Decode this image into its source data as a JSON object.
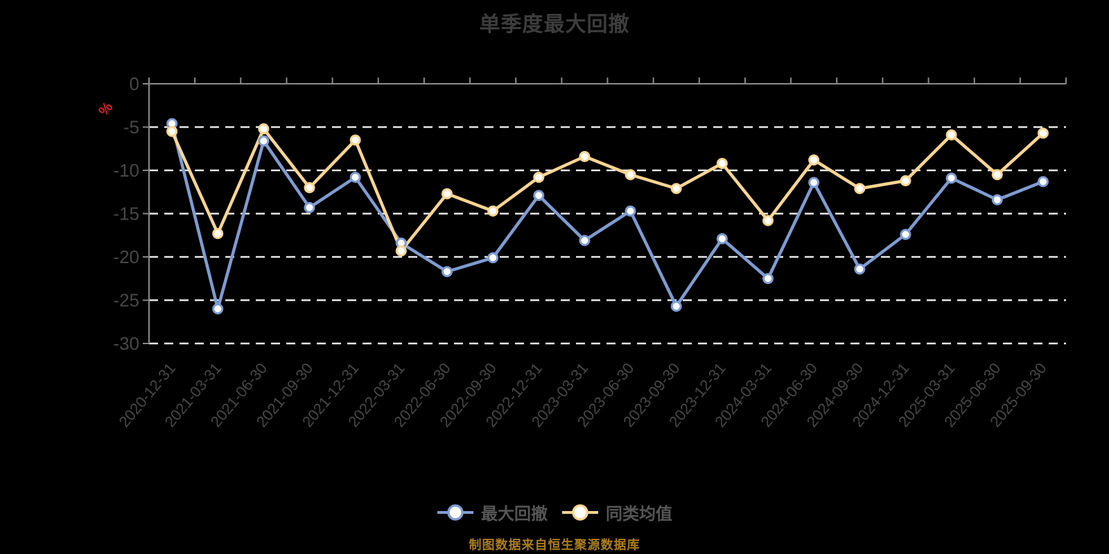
{
  "title": "单季度最大回撤",
  "source_note": "制图数据来自恒生聚源数据库",
  "unit_label": "%",
  "colors": {
    "background": "#000000",
    "title": "#3d3d3d",
    "axis_line": "#8a8a8a",
    "axis_label": "#474747",
    "grid_line": "#e8e8e8",
    "unit_label": "#e01e1e",
    "legend_label": "#555555",
    "source_note": "#ab7e1a",
    "marker_fill": "#ffffff"
  },
  "chart_data": {
    "type": "line",
    "title": "单季度最大回撤",
    "xlabel": "",
    "ylabel": "%",
    "ylim": [
      -30,
      0
    ],
    "y_ticks": [
      0,
      -5,
      -10,
      -15,
      -20,
      -25,
      -30
    ],
    "grid": "horizontal-dashed",
    "legend_position": "bottom",
    "categories": [
      "2020-12-31",
      "2021-03-31",
      "2021-06-30",
      "2021-09-30",
      "2021-12-31",
      "2022-03-31",
      "2022-06-30",
      "2022-09-30",
      "2022-12-31",
      "2023-03-31",
      "2023-06-30",
      "2023-09-30",
      "2023-12-31",
      "2024-03-31",
      "2024-06-30",
      "2024-09-30",
      "2024-12-31",
      "2025-03-31",
      "2025-06-30",
      "2025-09-30"
    ],
    "series": [
      {
        "name": "最大回撤",
        "color": "#7e9cd2",
        "values": [
          -4.6,
          -26,
          -6.6,
          -14.3,
          -10.8,
          -18.4,
          -21.7,
          -20.1,
          -12.9,
          -18.1,
          -14.7,
          -25.7,
          -17.9,
          -22.5,
          -11.4,
          -21.4,
          -17.4,
          -10.9,
          -13.4,
          -11.3
        ]
      },
      {
        "name": "同类均值",
        "color": "#fad592",
        "values": [
          -5.5,
          -17.3,
          -5.2,
          -12,
          -6.5,
          -19.3,
          -12.7,
          -14.7,
          -10.8,
          -8.4,
          -10.5,
          -12.1,
          -9.2,
          -15.8,
          -8.8,
          -12.1,
          -11.2,
          -5.9,
          -10.5,
          -5.7
        ]
      }
    ]
  }
}
